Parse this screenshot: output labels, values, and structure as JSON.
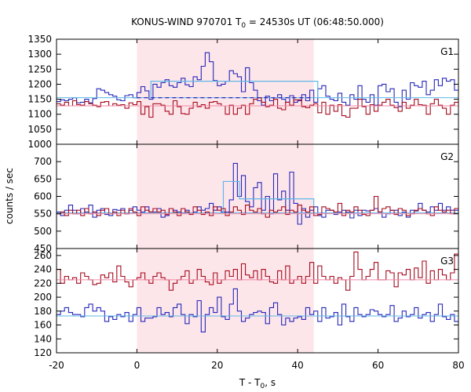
{
  "chart_data": {
    "type": "line",
    "title": "KONUS-WIND 970701 T",
    "title_sub": "0",
    "title_rest": " = 24530s UT (06:48:50.000)",
    "xlabel": "T - T",
    "xlabel_sub": "0",
    "xlabel_rest": ", s",
    "ylabel": "counts / sec",
    "xlim": [
      -20,
      80
    ],
    "xticks": [
      "-20",
      "0",
      "20",
      "40",
      "60",
      "80"
    ],
    "xtick_values": [
      -20,
      0,
      20,
      40,
      60,
      80
    ],
    "shaded_interval": [
      0,
      44
    ],
    "colors": {
      "blue": "#2727b9",
      "red": "#a60a1e",
      "light_blue": "#5fb8e8",
      "pink": "#f08aa6",
      "shade": "#fde6ea"
    },
    "panels": [
      {
        "label": "G1",
        "ylim": [
          1000,
          1350
        ],
        "yticks": [
          1000,
          1050,
          1100,
          1150,
          1200,
          1250,
          1300,
          1350
        ],
        "series": [
          {
            "color": "blue",
            "values": [
              1142,
              1148,
              1145,
              1150,
              1155,
              1138,
              1140,
              1150,
              1138,
              1152,
              1185,
              1180,
              1172,
              1165,
              1160,
              1148,
              1145,
              1162,
              1165,
              1155,
              1172,
              1192,
              1178,
              1150,
              1200,
              1190,
              1205,
              1215,
              1195,
              1190,
              1205,
              1220,
              1198,
              1192,
              1225,
              1215,
              1260,
              1305,
              1275,
              1212,
              1195,
              1200,
              1210,
              1245,
              1235,
              1225,
              1175,
              1255,
              1205,
              1180,
              1145,
              1130,
              1160,
              1145,
              1155,
              1165,
              1150,
              1140,
              1162,
              1140,
              1145,
              1165,
              1145,
              1180,
              1140,
              1185,
              1195,
              1160,
              1150,
              1145,
              1170,
              1140,
              1130,
              1165,
              1150,
              1195,
              1150,
              1140,
              1165,
              1130,
              1195,
              1200,
              1175,
              1185,
              1140,
              1125,
              1180,
              1150,
              1205,
              1195,
              1190,
              1210,
              1165,
              1180,
              1215,
              1195,
              1220,
              1210,
              1215,
              1180
            ],
            "bg_level": 1155,
            "bg_style": "solid",
            "src_level": 1210,
            "src_range": [
              3.5,
              45
            ]
          },
          {
            "color": "red",
            "values": [
              1135,
              1130,
              1140,
              1128,
              1145,
              1132,
              1130,
              1142,
              1135,
              1130,
              1125,
              1140,
              1142,
              1128,
              1135,
              1130,
              1132,
              1120,
              1138,
              1132,
              1142,
              1100,
              1125,
              1090,
              1135,
              1135,
              1130,
              1110,
              1100,
              1145,
              1125,
              1102,
              1100,
              1120,
              1140,
              1125,
              1132,
              1120,
              1140,
              1142,
              1135,
              1128,
              1100,
              1130,
              1100,
              1120,
              1130,
              1100,
              1135,
              1150,
              1155,
              1140,
              1125,
              1130,
              1150,
              1120,
              1115,
              1140,
              1130,
              1148,
              1148,
              1125,
              1122,
              1130,
              1135,
              1105,
              1140,
              1100,
              1130,
              1110,
              1132,
              1095,
              1090,
              1120,
              1120,
              1150,
              1125,
              1100,
              1132,
              1110,
              1130,
              1140,
              1150,
              1130,
              1122,
              1110,
              1140,
              1120,
              1130,
              1150,
              1132,
              1130,
              1100,
              1135,
              1150,
              1130,
              1120,
              1100,
              1130,
              1140
            ],
            "bg_level": 1128,
            "bg_style": "solid",
            "src_level": 1155,
            "src_range": [
              0,
              44
            ],
            "src_style": "dashed"
          }
        ]
      },
      {
        "label": "G2",
        "ylim": [
          450,
          750
        ],
        "yticks": [
          450,
          500,
          550,
          600,
          650,
          700
        ],
        "series": [
          {
            "color": "blue",
            "values": [
              555,
              545,
              560,
              575,
              560,
              550,
              565,
              555,
              575,
              540,
              560,
              565,
              548,
              545,
              562,
              560,
              565,
              550,
              560,
              570,
              560,
              555,
              570,
              555,
              555,
              565,
              540,
              545,
              565,
              560,
              555,
              552,
              560,
              550,
              555,
              570,
              560,
              565,
              580,
              560,
              570,
              555,
              555,
              590,
              695,
              600,
              660,
              585,
              570,
              625,
              640,
              560,
              600,
              550,
              665,
              590,
              615,
              560,
              670,
              580,
              520,
              565,
              540,
              560,
              570,
              545,
              540,
              560,
              560,
              548,
              555,
              560,
              555,
              538,
              560,
              545,
              560,
              558,
              560,
              565,
              555,
              540,
              550,
              560,
              560,
              545,
              555,
              540,
              560,
              558,
              580,
              560,
              555,
              570,
              560,
              580,
              560,
              570,
              560,
              560
            ],
            "bg_level": 553,
            "bg_style": "solid",
            "src_level": 593,
            "src_range": [
              21.5,
              44
            ],
            "src_peak": 643,
            "src_peak_range": [
              21.5,
              25.5
            ]
          },
          {
            "color": "red",
            "values": [
              550,
              555,
              545,
              560,
              550,
              560,
              545,
              565,
              550,
              555,
              545,
              560,
              565,
              550,
              555,
              545,
              560,
              550,
              565,
              555,
              545,
              570,
              560,
              555,
              565,
              555,
              560,
              548,
              565,
              555,
              545,
              565,
              555,
              548,
              570,
              560,
              548,
              555,
              545,
              570,
              560,
              565,
              545,
              555,
              570,
              560,
              548,
              575,
              560,
              555,
              565,
              550,
              540,
              560,
              555,
              560,
              570,
              548,
              560,
              555,
              575,
              560,
              555,
              570,
              545,
              548,
              570,
              565,
              560,
              555,
              580,
              545,
              560,
              555,
              570,
              560,
              548,
              545,
              560,
              600,
              555,
              565,
              570,
              560,
              548,
              565,
              560,
              545,
              550,
              560,
              565,
              560,
              550,
              545,
              570,
              560,
              555,
              560,
              550,
              565
            ],
            "bg_level": 550,
            "bg_style": "solid"
          }
        ]
      },
      {
        "label": "G3",
        "ylim": [
          120,
          270
        ],
        "yticks": [
          120,
          140,
          160,
          180,
          200,
          220,
          240,
          260
        ],
        "series": [
          {
            "color": "red",
            "values": [
              240,
              220,
              230,
              225,
              228,
              220,
              235,
              230,
              225,
              218,
              220,
              232,
              228,
              235,
              222,
              245,
              230,
              222,
              215,
              225,
              228,
              235,
              225,
              220,
              230,
              235,
              228,
              225,
              210,
              220,
              225,
              230,
              238,
              220,
              225,
              240,
              230,
              222,
              218,
              235,
              220,
              225,
              238,
              230,
              240,
              225,
              248,
              232,
              228,
              238,
              225,
              240,
              230,
              222,
              220,
              238,
              225,
              245,
              220,
              225,
              230,
              220,
              230,
              250,
              220,
              245,
              230,
              225,
              230,
              220,
              228,
              225,
              210,
              230,
              265,
              240,
              225,
              230,
              240,
              250,
              225,
              225,
              238,
              235,
              215,
              235,
              232,
              240,
              225,
              242,
              228,
              252,
              220,
              238,
              225,
              240,
              232,
              225,
              235,
              262
            ],
            "bg_level": 225,
            "bg_style": "solid"
          },
          {
            "color": "blue",
            "values": [
              175,
              180,
              185,
              178,
              175,
              175,
              172,
              185,
              190,
              180,
              185,
              180,
              165,
              172,
              168,
              175,
              172,
              178,
              165,
              175,
              185,
              165,
              170,
              170,
              172,
              185,
              175,
              178,
              172,
              185,
              190,
              175,
              162,
              175,
              172,
              195,
              150,
              175,
              185,
              178,
              200,
              172,
              168,
              190,
              212,
              180,
              165,
              170,
              175,
              178,
              180,
              178,
              162,
              185,
              192,
              175,
              160,
              170,
              165,
              170,
              172,
              168,
              185,
              175,
              180,
              165,
              185,
              170,
              172,
              178,
              160,
              190,
              172,
              165,
              185,
              175,
              172,
              175,
              182,
              180,
              175,
              172,
              175,
              188,
              165,
              170,
              180,
              172,
              175,
              185,
              170,
              175,
              178,
              165,
              175,
              190,
              172,
              168,
              175,
              165
            ],
            "bg_level": 173,
            "bg_style": "solid"
          }
        ]
      }
    ]
  }
}
